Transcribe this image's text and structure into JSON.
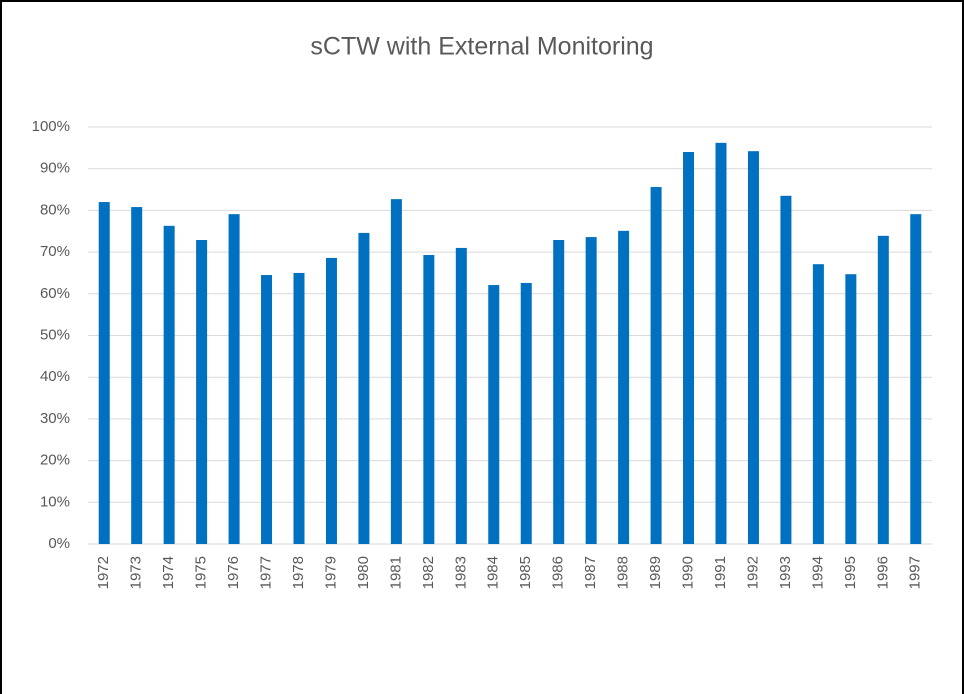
{
  "chart_data": {
    "type": "bar",
    "title": "sCTW with External Monitoring",
    "categories": [
      "1972",
      "1973",
      "1974",
      "1975",
      "1976",
      "1977",
      "1978",
      "1979",
      "1980",
      "1981",
      "1982",
      "1983",
      "1984",
      "1985",
      "1986",
      "1987",
      "1988",
      "1989",
      "1990",
      "1991",
      "1992",
      "1993",
      "1994",
      "1995",
      "1996",
      "1997"
    ],
    "values": [
      82.0,
      80.8,
      76.3,
      72.9,
      79.1,
      64.5,
      65.0,
      68.6,
      74.6,
      82.7,
      69.3,
      71.0,
      62.1,
      62.6,
      72.9,
      73.6,
      75.1,
      85.6,
      94.0,
      96.2,
      94.2,
      83.5,
      67.1,
      64.7,
      73.9,
      79.1
    ],
    "color": "#0070c0",
    "ylim": [
      0,
      100
    ],
    "yticks": [
      {
        "value": 0,
        "label": "0%"
      },
      {
        "value": 10,
        "label": "10%"
      },
      {
        "value": 20,
        "label": "20%"
      },
      {
        "value": 30,
        "label": "30%"
      },
      {
        "value": 40,
        "label": "40%"
      },
      {
        "value": 50,
        "label": "50%"
      },
      {
        "value": 60,
        "label": "60%"
      },
      {
        "value": 70,
        "label": "70%"
      },
      {
        "value": 80,
        "label": "80%"
      },
      {
        "value": 90,
        "label": "90%"
      },
      {
        "value": 100,
        "label": "100%"
      }
    ],
    "grid": true
  }
}
